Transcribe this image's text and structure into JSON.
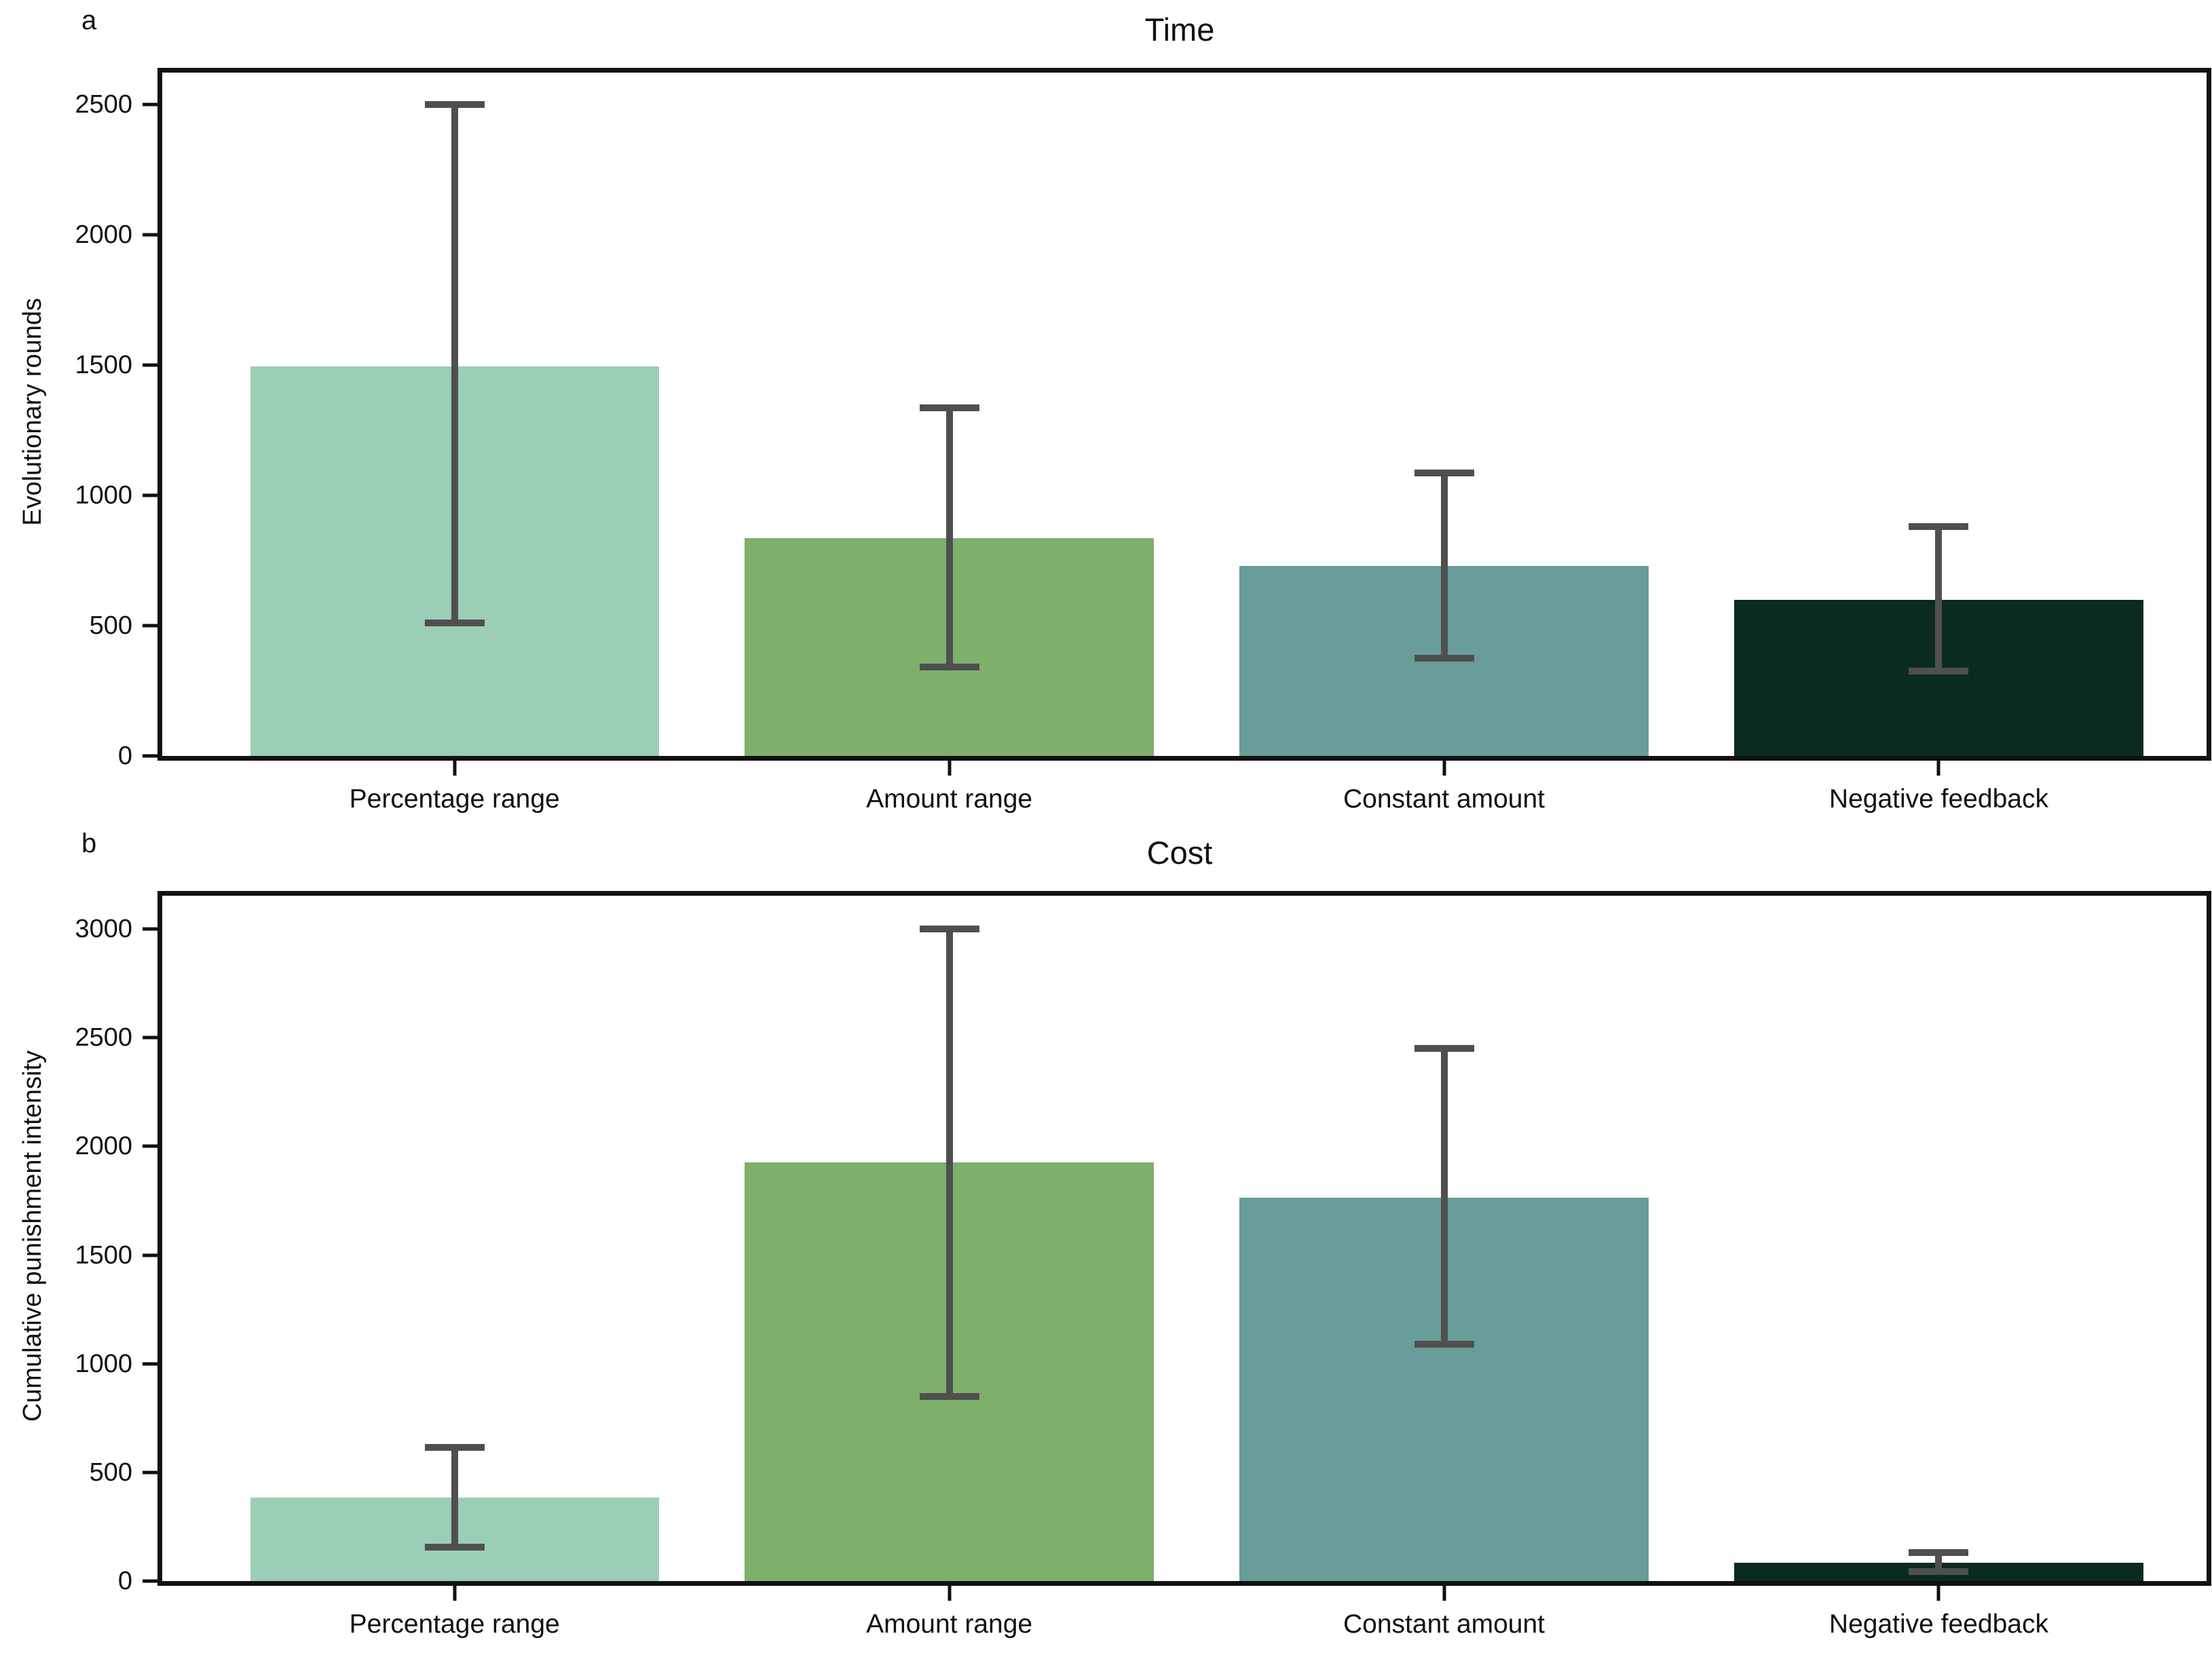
{
  "error_bar_color": "#4f4f4f",
  "axis_color": "#111111",
  "bar_colors": [
    "#9bceb4",
    "#7eb06b",
    "#689d99",
    "#0a2b21"
  ],
  "chart_data": [
    {
      "type": "bar",
      "panel_label": "a",
      "title": "Time",
      "ylabel": "Evolutionary rounds",
      "xlabel": "",
      "categories": [
        "Percentage range",
        "Amount range",
        "Constant amount",
        "Negative feedback"
      ],
      "values": [
        1495,
        835,
        730,
        600
      ],
      "error_low": [
        510,
        340,
        375,
        325
      ],
      "error_high": [
        2500,
        1335,
        1085,
        880
      ],
      "yticks": [
        0,
        500,
        1000,
        1500,
        2000,
        2500
      ],
      "ylim": [
        0,
        2622
      ],
      "grid": "off",
      "legend": "none"
    },
    {
      "type": "bar",
      "panel_label": "b",
      "title": "Cost",
      "ylabel": "Cumulative punishment intensity",
      "xlabel": "",
      "categories": [
        "Percentage range",
        "Amount range",
        "Constant amount",
        "Negative feedback"
      ],
      "values": [
        385,
        1925,
        1765,
        85
      ],
      "error_low": [
        155,
        850,
        1090,
        45
      ],
      "error_high": [
        615,
        3000,
        2450,
        130
      ],
      "yticks": [
        0,
        500,
        1000,
        1500,
        2000,
        2500,
        3000
      ],
      "ylim": [
        0,
        3153
      ],
      "grid": "off",
      "legend": "none"
    }
  ]
}
